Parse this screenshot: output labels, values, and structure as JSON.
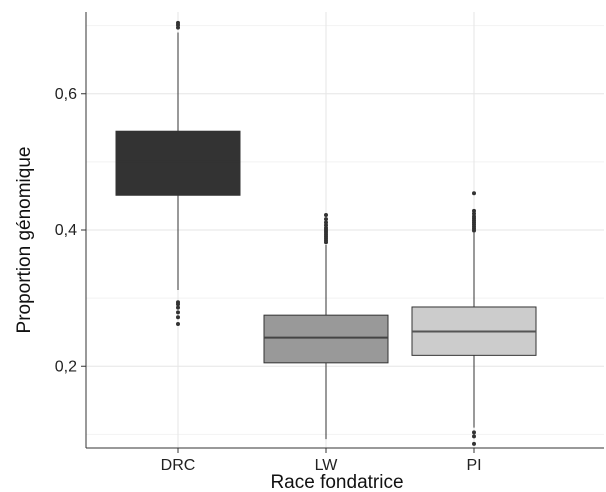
{
  "chart_data": {
    "type": "boxplot",
    "title": "",
    "xlabel": "Race fondatrice",
    "ylabel": "Proportion génomique",
    "ylim": [
      0.08,
      0.72
    ],
    "y_ticks": [
      {
        "value": 0.2,
        "label": "0,2"
      },
      {
        "value": 0.4,
        "label": "0,4"
      },
      {
        "value": 0.6,
        "label": "0,6"
      }
    ],
    "grid": true,
    "legend": "none",
    "categories": [
      "DRC",
      "LW",
      "PI"
    ],
    "boxes": [
      {
        "category": "DRC",
        "color": "#333333",
        "median_color": "#333333",
        "q1": 0.451,
        "median": 0.5,
        "q3": 0.545,
        "whisker_low": 0.312,
        "whisker_high": 0.69,
        "outliers": [
          0.262,
          0.272,
          0.279,
          0.286,
          0.291,
          0.294,
          0.697,
          0.701,
          0.704
        ]
      },
      {
        "category": "LW",
        "color": "#999999",
        "median_color": "#444444",
        "q1": 0.205,
        "median": 0.242,
        "q3": 0.275,
        "whisker_low": 0.093,
        "whisker_high": 0.378,
        "outliers": [
          0.382,
          0.385,
          0.388,
          0.391,
          0.394,
          0.397,
          0.4,
          0.403,
          0.407,
          0.411,
          0.416,
          0.422
        ]
      },
      {
        "category": "PI",
        "color": "#cccccc",
        "median_color": "#555555",
        "q1": 0.216,
        "median": 0.251,
        "q3": 0.287,
        "whisker_low": 0.11,
        "whisker_high": 0.396,
        "outliers": [
          0.086,
          0.097,
          0.103,
          0.399,
          0.402,
          0.405,
          0.408,
          0.411,
          0.414,
          0.417,
          0.42,
          0.424,
          0.428,
          0.454
        ]
      }
    ]
  }
}
